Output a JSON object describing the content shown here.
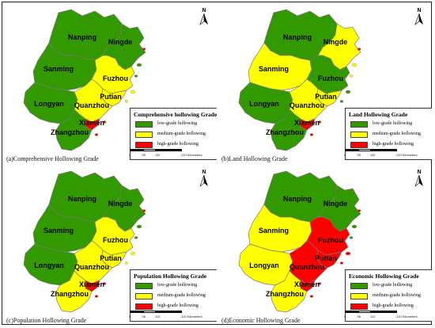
{
  "colors": {
    "low": "#339900",
    "medium": "#ffff00",
    "high": "#ff0000",
    "border": "#7a7a7a"
  },
  "north_label": "N",
  "city_labels": {
    "nanping": "Nanping",
    "ningde": "Ningde",
    "sanming": "Sanming",
    "fuzhou": "Fuzhou",
    "putian": "Putian",
    "longyan": "Longyan",
    "quanzhou": "Quanzhou",
    "xiamen": "Xiamen",
    "zhangzhou": "Zhangzhou"
  },
  "legend_items": [
    "low-grade hollowing",
    "medium-grade hollowing",
    "high-grade hollowing"
  ],
  "scale_ticks": [
    "0",
    "55",
    "110",
    "220 Kilometers"
  ],
  "panels": [
    {
      "caption": "(a)Comprehensive Hollowing Grade",
      "legend_title": "Comprehensive hollowing Grade",
      "grades": {
        "nanping": "low",
        "ningde": "low",
        "sanming": "low",
        "fuzhou": "medium",
        "putian": "medium",
        "longyan": "low",
        "quanzhou": "medium",
        "xiamen": "high",
        "zhangzhou": "low"
      }
    },
    {
      "caption": "(b)Land Hollowing Grade",
      "legend_title": "Land Hollowing Grade",
      "grades": {
        "nanping": "low",
        "ningde": "medium",
        "sanming": "medium",
        "fuzhou": "low",
        "putian": "medium",
        "longyan": "low",
        "quanzhou": "medium",
        "xiamen": "high",
        "zhangzhou": "low"
      }
    },
    {
      "caption": "(c)Population Hollowing Grade",
      "legend_title": "Population Hollowing Grade",
      "grades": {
        "nanping": "low",
        "ningde": "low",
        "sanming": "low",
        "fuzhou": "medium",
        "putian": "medium",
        "longyan": "low",
        "quanzhou": "medium",
        "xiamen": "high",
        "zhangzhou": "medium"
      }
    },
    {
      "caption": "(d)Economic Hollowing Grade",
      "legend_title": "Economic Hollowing Grade",
      "grades": {
        "nanping": "low",
        "ningde": "low",
        "sanming": "medium",
        "fuzhou": "high",
        "putian": "high",
        "longyan": "medium",
        "quanzhou": "high",
        "xiamen": "high",
        "zhangzhou": "medium"
      }
    }
  ]
}
